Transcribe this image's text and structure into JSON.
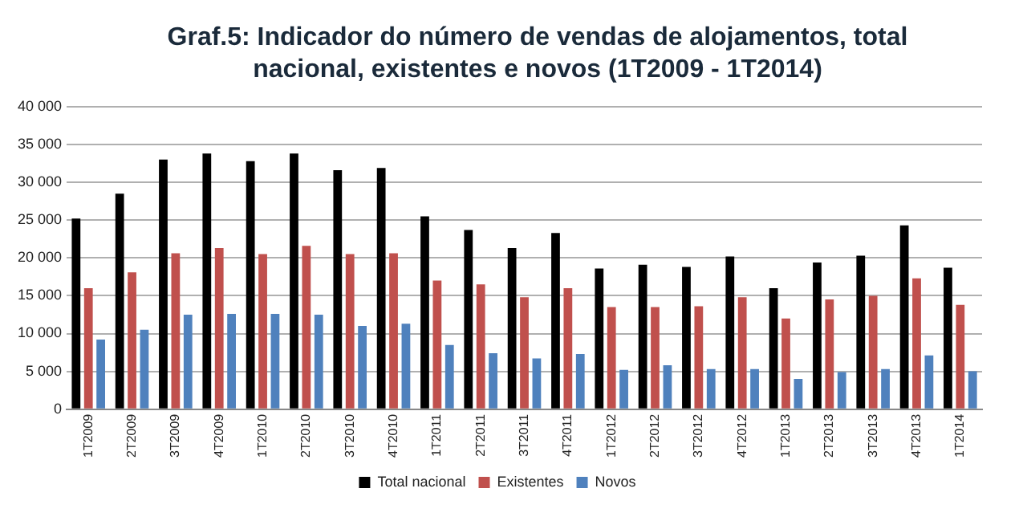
{
  "chart_data": {
    "type": "bar",
    "title": "Graf.5: Indicador do número de vendas de alojamentos, total nacional, existentes e novos (1T2009 - 1T2014)",
    "categories": [
      "1T2009",
      "2T2009",
      "3T2009",
      "4T2009",
      "1T2010",
      "2T2010",
      "3T2010",
      "4T2010",
      "1T2011",
      "2T2011",
      "3T2011",
      "4T2011",
      "1T2012",
      "2T2012",
      "3T2012",
      "4T2012",
      "1T2013",
      "2T2013",
      "3T2013",
      "4T2013",
      "1T2014"
    ],
    "series": [
      {
        "name": "Total nacional",
        "color": "#000000",
        "values": [
          25200,
          28500,
          33000,
          33800,
          32800,
          33800,
          31600,
          31900,
          25500,
          23700,
          21300,
          23300,
          18600,
          19100,
          18800,
          20200,
          16000,
          19400,
          20300,
          24300,
          18700
        ]
      },
      {
        "name": "Existentes",
        "color": "#c0504d",
        "values": [
          16000,
          18100,
          20600,
          21300,
          20500,
          21600,
          20500,
          20600,
          17000,
          16500,
          14800,
          16000,
          13500,
          13500,
          13600,
          14800,
          12000,
          14500,
          15000,
          17300,
          13800
        ]
      },
      {
        "name": "Novos",
        "color": "#4f81bd",
        "values": [
          9200,
          10500,
          12500,
          12600,
          12600,
          12500,
          11000,
          11300,
          8500,
          7400,
          6700,
          7300,
          5200,
          5800,
          5300,
          5300,
          4000,
          4900,
          5300,
          7100,
          5000
        ]
      }
    ],
    "ylim": [
      0,
      40000
    ],
    "yticks": [
      0,
      {
        "value": 5000,
        "label": "5 000"
      },
      {
        "value": 10000,
        "label": "10 000"
      },
      {
        "value": 15000,
        "label": "15 000"
      },
      {
        "value": 20000,
        "label": "20 000"
      },
      {
        "value": 25000,
        "label": "25 000"
      },
      {
        "value": 30000,
        "label": "30 000"
      },
      {
        "value": 35000,
        "label": "35 000"
      },
      {
        "value": 40000,
        "label": "40 000"
      }
    ],
    "grid": "y",
    "legend": "bottom"
  }
}
